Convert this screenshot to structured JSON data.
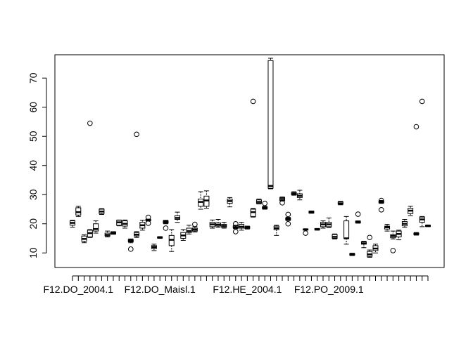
{
  "chart_data": {
    "type": "box",
    "title": "",
    "xlabel": "",
    "ylabel": "",
    "ylim": [
      5,
      78
    ],
    "y_ticks": [
      10,
      20,
      30,
      40,
      50,
      60,
      70
    ],
    "x_tick_labels": [
      "F12.DO_2004.1",
      "F12.DO_Maisl.1",
      "F12.HE_2004.1",
      "F12.PO_2009.1"
    ],
    "x_tick_label_index": [
      1,
      15,
      30,
      44
    ],
    "grid": false,
    "legend": "none",
    "line_color": "#000000",
    "groups": [
      {
        "q1": 19.5,
        "median": 20.3,
        "q3": 21,
        "lo": 18.8,
        "hi": 21.2,
        "outliers": []
      },
      {
        "q1": 23,
        "median": 24,
        "q3": 25.5,
        "lo": 22.5,
        "hi": 26,
        "outliers": []
      },
      {
        "q1": 14,
        "median": 14.8,
        "q3": 15.8,
        "lo": 13.5,
        "hi": 16.2,
        "outliers": []
      },
      {
        "q1": 15.5,
        "median": 16.8,
        "q3": 17.8,
        "lo": 15.3,
        "hi": 18,
        "outliers": [
          54.5
        ]
      },
      {
        "q1": 17.5,
        "median": 18.2,
        "q3": 20,
        "lo": 16.8,
        "hi": 21,
        "outliers": []
      },
      {
        "q1": 23.5,
        "median": 24.2,
        "q3": 25,
        "lo": 23.2,
        "hi": 25.2,
        "outliers": []
      },
      {
        "q1": 15.8,
        "median": 16.2,
        "q3": 16.8,
        "lo": 15.5,
        "hi": 17.5,
        "outliers": []
      },
      {
        "q1": 16.5,
        "median": 16.8,
        "q3": 17.2,
        "lo": 16.4,
        "hi": 17.3,
        "outliers": []
      },
      {
        "q1": 19.5,
        "median": 20.5,
        "q3": 21.2,
        "lo": 19.3,
        "hi": 21.3,
        "outliers": []
      },
      {
        "q1": 19.2,
        "median": 20,
        "q3": 21,
        "lo": 18.5,
        "hi": 21.3,
        "outliers": []
      },
      {
        "q1": 13.8,
        "median": 14.2,
        "q3": 14.6,
        "lo": 13.5,
        "hi": 14.8,
        "outliers": [
          11.3
        ]
      },
      {
        "q1": 15.8,
        "median": 16.3,
        "q3": 17,
        "lo": 15.3,
        "hi": 17.3,
        "outliers": [
          50.7
        ]
      },
      {
        "q1": 18.5,
        "median": 19.5,
        "q3": 20.5,
        "lo": 17.8,
        "hi": 21.2,
        "outliers": []
      },
      {
        "q1": 21,
        "median": 21.3,
        "q3": 21.5,
        "lo": 20.9,
        "hi": 21.6,
        "outliers": [
          20.2,
          22.2
        ]
      },
      {
        "q1": 11.5,
        "median": 12,
        "q3": 12.5,
        "lo": 10.8,
        "hi": 13,
        "outliers": []
      },
      {
        "q1": 15.1,
        "median": 15.3,
        "q3": 15.5,
        "lo": 15,
        "hi": 15.6,
        "outliers": []
      },
      {
        "q1": 20.2,
        "median": 20.6,
        "q3": 21,
        "lo": 20,
        "hi": 21.2,
        "outliers": [
          18.5
        ]
      },
      {
        "q1": 12.5,
        "median": 14.5,
        "q3": 16,
        "lo": 10.5,
        "hi": 18,
        "outliers": []
      },
      {
        "q1": 21.5,
        "median": 22,
        "q3": 22.8,
        "lo": 20.5,
        "hi": 24,
        "outliers": []
      },
      {
        "q1": 15,
        "median": 16,
        "q3": 17,
        "lo": 14.3,
        "hi": 18,
        "outliers": []
      },
      {
        "q1": 17,
        "median": 17.5,
        "q3": 18.5,
        "lo": 16.5,
        "hi": 19.5,
        "outliers": []
      },
      {
        "q1": 17.5,
        "median": 18,
        "q3": 18.5,
        "lo": 17.2,
        "hi": 19,
        "outliers": [
          19.8
        ]
      },
      {
        "q1": 26,
        "median": 27.5,
        "q3": 28.5,
        "lo": 25,
        "hi": 31,
        "outliers": []
      },
      {
        "q1": 26,
        "median": 28,
        "q3": 29.5,
        "lo": 25.3,
        "hi": 31.3,
        "outliers": []
      },
      {
        "q1": 19,
        "median": 19.8,
        "q3": 20.5,
        "lo": 18.5,
        "hi": 21.3,
        "outliers": []
      },
      {
        "q1": 19.2,
        "median": 19.7,
        "q3": 20.3,
        "lo": 18.8,
        "hi": 21.5,
        "outliers": []
      },
      {
        "q1": 18.8,
        "median": 19.3,
        "q3": 19.8,
        "lo": 18.5,
        "hi": 20.5,
        "outliers": []
      },
      {
        "q1": 27,
        "median": 27.8,
        "q3": 28.5,
        "lo": 25.8,
        "hi": 29,
        "outliers": []
      },
      {
        "q1": 18.5,
        "median": 18.8,
        "q3": 19.3,
        "lo": 18.3,
        "hi": 19.5,
        "outliers": [
          17.3,
          20
        ]
      },
      {
        "q1": 18.5,
        "median": 19,
        "q3": 19.8,
        "lo": 17.8,
        "hi": 20.5,
        "outliers": []
      },
      {
        "q1": 18.4,
        "median": 18.7,
        "q3": 19,
        "lo": 18.2,
        "hi": 19.2,
        "outliers": []
      },
      {
        "q1": 22.5,
        "median": 24,
        "q3": 25,
        "lo": 22.3,
        "hi": 25.3,
        "outliers": [
          62
        ]
      },
      {
        "q1": 27,
        "median": 27.5,
        "q3": 28.2,
        "lo": 26.8,
        "hi": 28.5,
        "outliers": []
      },
      {
        "q1": 25.2,
        "median": 25.5,
        "q3": 25.8,
        "lo": 25,
        "hi": 26,
        "outliers": [
          27
        ]
      },
      {
        "q1": 32.2,
        "median": 33,
        "q3": 76,
        "lo": 32,
        "hi": 76.8,
        "outliers": []
      },
      {
        "q1": 18,
        "median": 18.5,
        "q3": 19.2,
        "lo": 16,
        "hi": 19.5,
        "outliers": []
      },
      {
        "q1": 28,
        "median": 28.5,
        "q3": 29,
        "lo": 27.8,
        "hi": 29.2,
        "outliers": [
          27.2
        ]
      },
      {
        "q1": 21.3,
        "median": 21.6,
        "q3": 22,
        "lo": 21.1,
        "hi": 22.2,
        "outliers": [
          20,
          23.2
        ]
      },
      {
        "q1": 30,
        "median": 30.3,
        "q3": 30.7,
        "lo": 29.8,
        "hi": 31,
        "outliers": []
      },
      {
        "q1": 29,
        "median": 29.6,
        "q3": 30.3,
        "lo": 28.2,
        "hi": 31.5,
        "outliers": []
      },
      {
        "q1": 17.9,
        "median": 18,
        "q3": 18.2,
        "lo": 17.8,
        "hi": 18.3,
        "outliers": [
          16.8
        ]
      },
      {
        "q1": 23.7,
        "median": 24,
        "q3": 24.3,
        "lo": 23.6,
        "hi": 24.4,
        "outliers": []
      },
      {
        "q1": 17.9,
        "median": 18.1,
        "q3": 18.3,
        "lo": 17.8,
        "hi": 18.4,
        "outliers": []
      },
      {
        "q1": 19,
        "median": 19.8,
        "q3": 20.5,
        "lo": 18.5,
        "hi": 21,
        "outliers": []
      },
      {
        "q1": 19,
        "median": 19.8,
        "q3": 20.5,
        "lo": 18.7,
        "hi": 22,
        "outliers": []
      },
      {
        "q1": 15,
        "median": 15.5,
        "q3": 16.3,
        "lo": 14.8,
        "hi": 16.5,
        "outliers": []
      },
      {
        "q1": 26.7,
        "median": 27,
        "q3": 27.5,
        "lo": 26.5,
        "hi": 27.7,
        "outliers": []
      },
      {
        "q1": 15,
        "median": 15,
        "q3": 21,
        "lo": 13,
        "hi": 22.5,
        "outliers": []
      },
      {
        "q1": 9.2,
        "median": 9.5,
        "q3": 9.8,
        "lo": 9.1,
        "hi": 9.9,
        "outliers": []
      },
      {
        "q1": 20.3,
        "median": 20.6,
        "q3": 20.9,
        "lo": 20.2,
        "hi": 21,
        "outliers": [
          23.3
        ]
      },
      {
        "q1": 13,
        "median": 13.3,
        "q3": 13.8,
        "lo": 11.8,
        "hi": 14,
        "outliers": []
      },
      {
        "q1": 8.8,
        "median": 9.5,
        "q3": 10.5,
        "lo": 8.5,
        "hi": 11,
        "outliers": [
          15.3
        ]
      },
      {
        "q1": 10.8,
        "median": 11.5,
        "q3": 12.5,
        "lo": 10,
        "hi": 13,
        "outliers": []
      },
      {
        "q1": 27.2,
        "median": 27.5,
        "q3": 27.8,
        "lo": 27,
        "hi": 28,
        "outliers": [
          24.8,
          28
        ]
      },
      {
        "q1": 18.2,
        "median": 18.8,
        "q3": 19.2,
        "lo": 17.5,
        "hi": 19.8,
        "outliers": []
      },
      {
        "q1": 15.2,
        "median": 15.8,
        "q3": 16.3,
        "lo": 14.8,
        "hi": 17.5,
        "outliers": [
          10.8
        ]
      },
      {
        "q1": 15.5,
        "median": 16.5,
        "q3": 17.5,
        "lo": 14.5,
        "hi": 17.8,
        "outliers": []
      },
      {
        "q1": 19.3,
        "median": 20,
        "q3": 20.8,
        "lo": 18.8,
        "hi": 21.5,
        "outliers": []
      },
      {
        "q1": 23.5,
        "median": 24.5,
        "q3": 25.3,
        "lo": 22.8,
        "hi": 26,
        "outliers": []
      },
      {
        "q1": 16.3,
        "median": 16.5,
        "q3": 16.8,
        "lo": 16.1,
        "hi": 17,
        "outliers": [
          53.3
        ]
      },
      {
        "q1": 20.5,
        "median": 21.5,
        "q3": 22.3,
        "lo": 19,
        "hi": 22.5,
        "outliers": [
          62
        ]
      },
      {
        "q1": 19.1,
        "median": 19.3,
        "q3": 19.5,
        "lo": 19,
        "hi": 19.6,
        "outliers": []
      }
    ]
  }
}
